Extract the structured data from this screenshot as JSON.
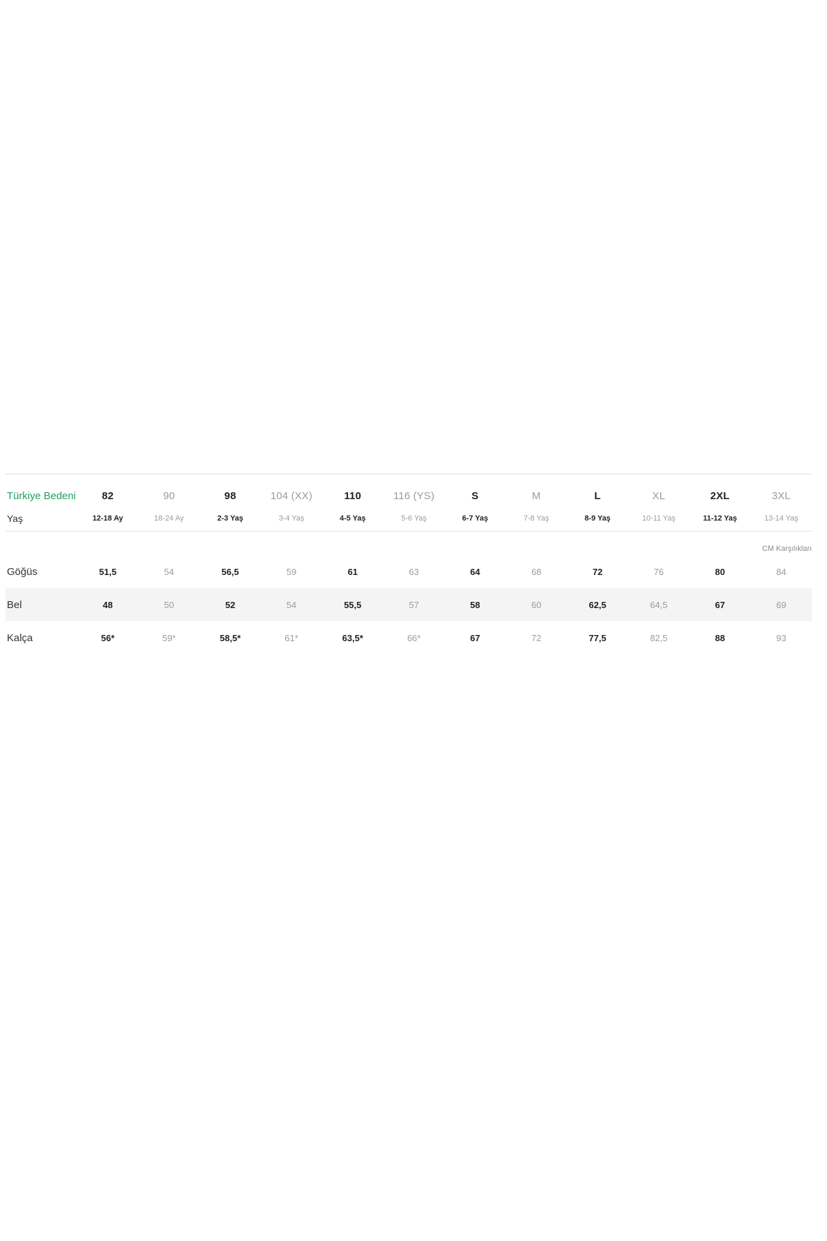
{
  "table": {
    "header": {
      "row1_label": "Türkiye Bedeni",
      "row2_label": "Yaş",
      "columns": [
        {
          "size": "82",
          "age": "12-18 Ay",
          "emphasis": true
        },
        {
          "size": "90",
          "age": "18-24 Ay",
          "emphasis": false
        },
        {
          "size": "98",
          "age": "2-3 Yaş",
          "emphasis": true
        },
        {
          "size": "104 (XX)",
          "age": "3-4 Yaş",
          "emphasis": false
        },
        {
          "size": "110",
          "age": "4-5 Yaş",
          "emphasis": true
        },
        {
          "size": "116 (YS)",
          "age": "5-6 Yaş",
          "emphasis": false
        },
        {
          "size": "S",
          "age": "6-7 Yaş",
          "emphasis": true
        },
        {
          "size": "M",
          "age": "7-8 Yaş",
          "emphasis": false
        },
        {
          "size": "L",
          "age": "8-9 Yaş",
          "emphasis": true
        },
        {
          "size": "XL",
          "age": "10-11 Yaş",
          "emphasis": false
        },
        {
          "size": "2XL",
          "age": "11-12 Yaş",
          "emphasis": true
        },
        {
          "size": "3XL",
          "age": "13-14 Yaş",
          "emphasis": false
        }
      ]
    },
    "note": "CM Karşılıkları",
    "rows": [
      {
        "label": "Göğüs",
        "shaded": false,
        "values": [
          "51,5",
          "54",
          "56,5",
          "59",
          "61",
          "63",
          "64",
          "68",
          "72",
          "76",
          "80",
          "84"
        ]
      },
      {
        "label": "Bel",
        "shaded": true,
        "values": [
          "48",
          "50",
          "52",
          "54",
          "55,5",
          "57",
          "58",
          "60",
          "62,5",
          "64,5",
          "67",
          "69"
        ]
      },
      {
        "label": "Kalça",
        "shaded": false,
        "values": [
          "56*",
          "59*",
          "58,5*",
          "61*",
          "63,5*",
          "66*",
          "67",
          "72",
          "77,5",
          "82,5",
          "88",
          "93"
        ]
      }
    ],
    "colors": {
      "brand_green": "#23a05f",
      "dark_text": "#222222",
      "muted_text": "#9b9b9b",
      "row_label_text": "#333333",
      "border": "#e0e0e0",
      "shaded_row": "#f4f4f4",
      "note_text": "#8a8a8a",
      "background": "#ffffff"
    }
  }
}
